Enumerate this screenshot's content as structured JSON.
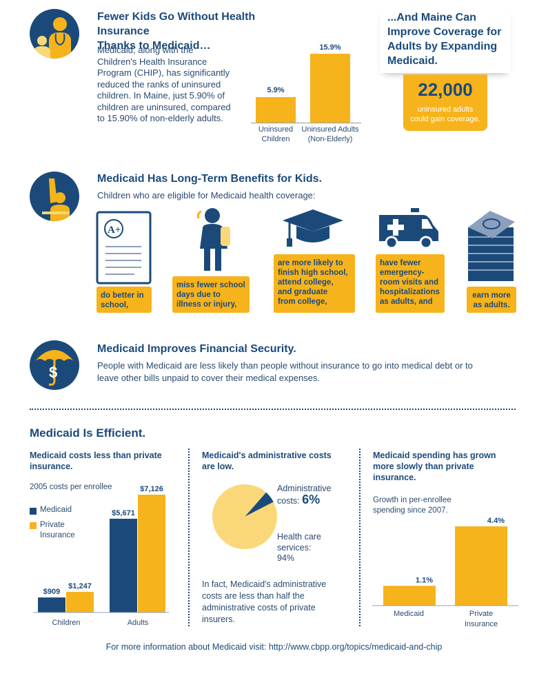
{
  "colors": {
    "navy": "#1b4a7a",
    "yellow": "#f7b31b",
    "light_yellow": "#fad879"
  },
  "section1": {
    "title_line1": "Fewer Kids Go Without Health Insurance",
    "title_line2": "Thanks to Medicaid…",
    "body": [
      "Medicaid, along with the",
      "Children's Health Insurance",
      "Program (CHIP), has significantly",
      "reduced the ranks of uninsured",
      "children. In Maine, just 5.90% of",
      "children are uninsured, compared",
      "to 15.90% of non-elderly adults."
    ],
    "icon": "doctor-with-child-icon"
  },
  "chart_uninsured": {
    "type": "bar",
    "categories": [
      "Uninsured Children",
      "Uninsured Adults (Non-Elderly)"
    ],
    "category_lines": [
      [
        "Uninsured",
        "Children"
      ],
      [
        "Uninsured Adults",
        "(Non-Elderly)"
      ]
    ],
    "values": [
      5.9,
      15.9
    ],
    "value_labels": [
      "5.9%",
      "15.9%"
    ]
  },
  "maine_callout": {
    "title": [
      "...And Maine Can",
      "Improve Coverage for",
      "Adults by Expanding",
      "Medicaid."
    ],
    "number": "22,000",
    "caption": [
      "uninsured adults",
      "could gain coverage."
    ]
  },
  "section2": {
    "title": "Medicaid Has Long-Term Benefits for Kids.",
    "intro": "Children who are eligible for Medicaid health coverage:",
    "icon": "raised-hand-student-icon",
    "benefits": [
      {
        "icon": "report-card-icon",
        "text": [
          "do better in",
          "school,"
        ]
      },
      {
        "icon": "student-backpack-icon",
        "text": [
          "miss fewer school",
          "days due to",
          "illness or injury,"
        ]
      },
      {
        "icon": "graduation-cap-icon",
        "text": [
          "are more likely to",
          "finish high school,",
          "attend college,",
          "and graduate",
          "from college,"
        ]
      },
      {
        "icon": "ambulance-icon",
        "text": [
          "have fewer",
          "emergency-",
          "room visits and",
          "hospitalizations",
          "as adults, and"
        ]
      },
      {
        "icon": "money-stack-icon",
        "text": [
          "earn more",
          "as adults."
        ]
      }
    ]
  },
  "section3": {
    "title": "Medicaid Improves Financial Security.",
    "body": [
      "People with Medicaid are less likely than people without insurance to go into medical debt or to",
      "leave other bills unpaid to cover their medical expenses."
    ],
    "icon": "umbrella-dollar-icon"
  },
  "efficient": {
    "title": "Medicaid Is Efficient.",
    "col1": {
      "heading": [
        "Medicaid costs less than private",
        "insurance."
      ],
      "subtitle": "2005 costs per enrollee",
      "legend": [
        {
          "name": "Medicaid",
          "color": "#1b4a7a"
        },
        {
          "name_lines": [
            "Private",
            "Insurance"
          ],
          "color": "#f7b31b"
        }
      ]
    },
    "col2": {
      "heading": [
        "Medicaid's administrative costs",
        "are low."
      ],
      "admin_label": [
        "Administrative",
        "costs:"
      ],
      "admin_value": "6%",
      "care_label": [
        "Health care",
        "services:",
        "94%"
      ],
      "footer": [
        "In fact, Medicaid's administrative",
        "costs are less than half the",
        "administrative costs of private",
        "insurers."
      ]
    },
    "col3": {
      "heading": [
        "Medicaid spending has grown",
        "more slowly than private",
        "insurance."
      ],
      "subtitle": [
        "Growth in per-enrollee",
        "spending since 2007."
      ]
    }
  },
  "chart_data": [
    {
      "type": "bar",
      "categories": [
        "Children",
        "Adults"
      ],
      "series": [
        {
          "name": "Medicaid",
          "values": [
            909,
            5671
          ]
        },
        {
          "name": "Private Insurance",
          "values": [
            1247,
            7126
          ]
        }
      ],
      "value_labels": [
        [
          "$909",
          "$5,671"
        ],
        [
          "$1,247",
          "$7,126"
        ]
      ],
      "title": "2005 costs per enrollee"
    },
    {
      "type": "pie",
      "categories": [
        "Administrative costs",
        "Health care services"
      ],
      "values": [
        6,
        94
      ]
    },
    {
      "type": "bar",
      "categories": [
        "Medicaid",
        "Private Insurance"
      ],
      "category_lines": [
        [
          "Medicaid"
        ],
        [
          "Private",
          "Insurance"
        ]
      ],
      "values": [
        1.1,
        4.4
      ],
      "value_labels": [
        "1.1%",
        "4.4%"
      ],
      "title": "Growth in per-enrollee spending since 2007."
    }
  ],
  "footer": "For more information about Medicaid visit: http://www.cbpp.org/topics/medicaid-and-chip"
}
